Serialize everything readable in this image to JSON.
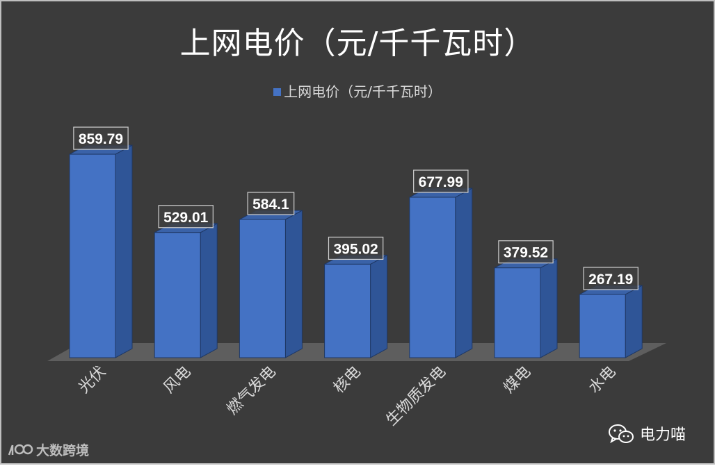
{
  "chart_data": {
    "type": "bar",
    "title": "上网电价（元/千千瓦时）",
    "categories": [
      "光伏",
      "风电",
      "燃气发电",
      "核电",
      "生物质发电",
      "煤电",
      "水电"
    ],
    "series": [
      {
        "name": "上网电价（元/千千瓦时）",
        "values": [
          859.79,
          529.01,
          584.1,
          395.02,
          677.99,
          379.52,
          267.19
        ],
        "labels": [
          "859.79",
          "529.01",
          "584.1",
          "395.02",
          "677.99",
          "379.52",
          "267.19"
        ]
      }
    ],
    "xlabel": "",
    "ylabel": "",
    "ylim": [
      0,
      900
    ],
    "grid": false,
    "legend": "top",
    "style": "3d-column",
    "colors": {
      "bar_front": "#4472c4",
      "bar_side": "#2f5597",
      "bar_top": "#3a62a8",
      "background": "#3b3b3b",
      "floor": "#5e5e5e"
    }
  },
  "watermarks": {
    "left_text": "大数跨境",
    "right_text": "电力喵",
    "left_icon": "logo-mark-icon",
    "right_icon": "wechat-icon"
  }
}
